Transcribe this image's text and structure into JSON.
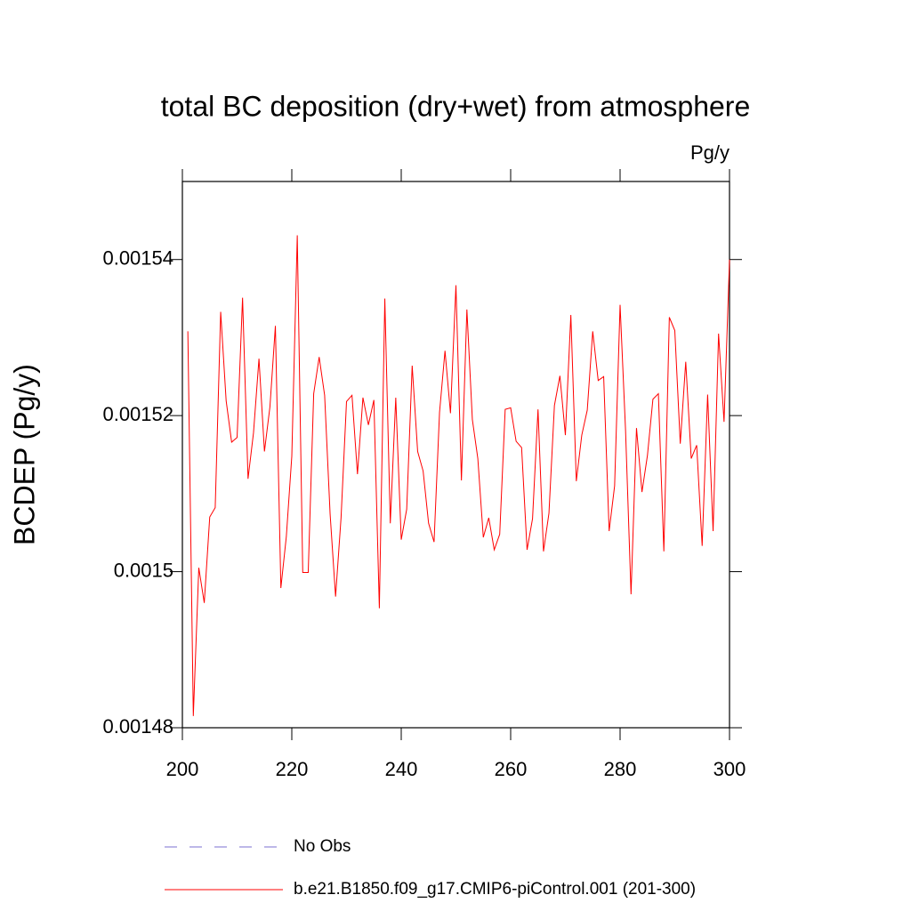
{
  "chart_data": {
    "type": "line",
    "title": "total BC deposition (dry+wet) from atmosphere",
    "units_label": "Pg/y",
    "y_label": "BCDEP  (Pg/y)",
    "x": [
      201,
      202,
      203,
      204,
      205,
      206,
      207,
      208,
      209,
      210,
      211,
      212,
      213,
      214,
      215,
      216,
      217,
      218,
      219,
      220,
      221,
      222,
      223,
      224,
      225,
      226,
      227,
      228,
      229,
      230,
      231,
      232,
      233,
      234,
      235,
      236,
      237,
      238,
      239,
      240,
      241,
      242,
      243,
      244,
      245,
      246,
      247,
      248,
      249,
      250,
      251,
      252,
      253,
      254,
      255,
      256,
      257,
      258,
      259,
      260,
      261,
      262,
      263,
      264,
      265,
      266,
      267,
      268,
      269,
      270,
      271,
      272,
      273,
      274,
      275,
      276,
      277,
      278,
      279,
      280,
      281,
      282,
      283,
      284,
      285,
      286,
      287,
      288,
      289,
      290,
      291,
      292,
      293,
      294,
      295,
      296,
      297,
      298,
      299,
      300
    ],
    "series": [
      {
        "name": "b.e21.B1850.f09_g17.CMIP6-piControl.001 (201-300)",
        "color": "#ff0000",
        "values": [
          0.0015308,
          0.0014815,
          0.0015005,
          0.001496,
          0.001507,
          0.0015082,
          0.0015333,
          0.0015219,
          0.0015166,
          0.0015172,
          0.0015351,
          0.0015119,
          0.0015178,
          0.0015273,
          0.0015154,
          0.0015211,
          0.0015315,
          0.0014979,
          0.0015045,
          0.0015148,
          0.0015431,
          0.0014999,
          0.0014999,
          0.0015228,
          0.0015275,
          0.0015226,
          0.0015074,
          0.0014968,
          0.0015069,
          0.0015218,
          0.0015226,
          0.0015125,
          0.0015223,
          0.0015188,
          0.001522,
          0.0014953,
          0.001535,
          0.0015062,
          0.0015223,
          0.0015041,
          0.001508,
          0.0015264,
          0.0015154,
          0.0015129,
          0.0015062,
          0.0015038,
          0.0015204,
          0.0015283,
          0.0015203,
          0.0015367,
          0.0015117,
          0.0015336,
          0.0015195,
          0.0015145,
          0.0015044,
          0.0015069,
          0.0015028,
          0.0015048,
          0.0015208,
          0.001521,
          0.0015167,
          0.0015159,
          0.0015028,
          0.0015068,
          0.0015208,
          0.0015026,
          0.0015075,
          0.0015213,
          0.0015251,
          0.0015175,
          0.0015329,
          0.0015116,
          0.0015175,
          0.0015207,
          0.0015308,
          0.0015245,
          0.001525,
          0.0015052,
          0.001511,
          0.0015342,
          0.0015181,
          0.0014971,
          0.0015184,
          0.0015102,
          0.0015149,
          0.0015221,
          0.0015228,
          0.0015026,
          0.0015326,
          0.0015309,
          0.0015164,
          0.0015269,
          0.0015145,
          0.0015162,
          0.0015033,
          0.0015227,
          0.0015052,
          0.0015305,
          0.0015192,
          0.00154
        ]
      }
    ],
    "legend_extra": [
      {
        "name": "No Obs",
        "color": "#7b6fd0",
        "dashed": true
      }
    ],
    "xlim": [
      200,
      300
    ],
    "xticks": [
      200,
      220,
      240,
      260,
      280,
      300
    ],
    "ylim": [
      0.00148,
      0.00155
    ],
    "yticks": [
      0.00148,
      0.0015,
      0.00152,
      0.00154
    ]
  }
}
